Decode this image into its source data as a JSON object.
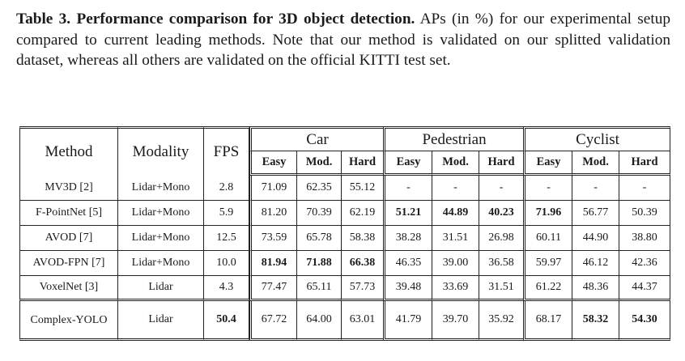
{
  "caption": {
    "label": "Table 3.",
    "bold_title": "Performance comparison for 3D object detection.",
    "text": "APs (in %) for our experimental setup compared to current leading methods. Note that our method is validated on our splitted validation dataset, whereas all others are validated on the official KITTI test set."
  },
  "table": {
    "headers": {
      "method": "Method",
      "modality": "Modality",
      "fps": "FPS",
      "car": "Car",
      "pedestrian": "Pedestrian",
      "cyclist": "Cyclist"
    },
    "subheaders": [
      "Easy",
      "Mod.",
      "Hard",
      "Easy",
      "Mod.",
      "Hard",
      "Easy",
      "Mod.",
      "Hard"
    ],
    "rows": [
      {
        "method": "MV3D [2]",
        "modality": "Lidar+Mono",
        "fps": "2.8",
        "values": [
          "71.09",
          "62.35",
          "55.12",
          "-",
          "-",
          "-",
          "-",
          "-",
          "-"
        ],
        "bold": []
      },
      {
        "method": "F-PointNet [5]",
        "modality": "Lidar+Mono",
        "fps": "5.9",
        "values": [
          "81.20",
          "70.39",
          "62.19",
          "51.21",
          "44.89",
          "40.23",
          "71.96",
          "56.77",
          "50.39"
        ],
        "bold": [
          3,
          4,
          5,
          6
        ]
      },
      {
        "method": "AVOD [7]",
        "modality": "Lidar+Mono",
        "fps": "12.5",
        "values": [
          "73.59",
          "65.78",
          "58.38",
          "38.28",
          "31.51",
          "26.98",
          "60.11",
          "44.90",
          "38.80"
        ],
        "bold": []
      },
      {
        "method": "AVOD-FPN [7]",
        "modality": "Lidar+Mono",
        "fps": "10.0",
        "values": [
          "81.94",
          "71.88",
          "66.38",
          "46.35",
          "39.00",
          "36.58",
          "59.97",
          "46.12",
          "42.36"
        ],
        "bold": [
          0,
          1,
          2
        ]
      },
      {
        "method": "VoxelNet [3]",
        "modality": "Lidar",
        "fps": "4.3",
        "values": [
          "77.47",
          "65.11",
          "57.73",
          "39.48",
          "33.69",
          "31.51",
          "61.22",
          "48.36",
          "44.37"
        ],
        "bold": []
      }
    ],
    "last_row": {
      "method": "Complex-YOLO",
      "modality": "Lidar",
      "fps": "50.4",
      "values": [
        "67.72",
        "64.00",
        "63.01",
        "41.79",
        "39.70",
        "35.92",
        "68.17",
        "58.32",
        "54.30"
      ],
      "bold": [
        7,
        8
      ],
      "fps_bold": true
    }
  }
}
